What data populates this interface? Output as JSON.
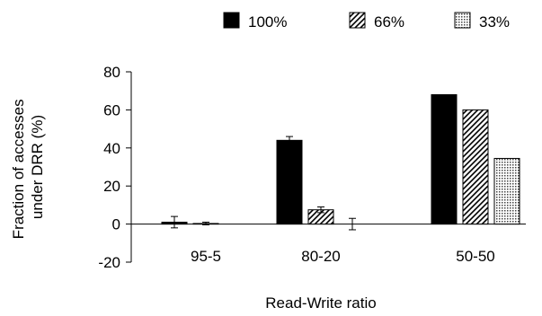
{
  "chart_data": {
    "type": "bar",
    "title": "",
    "xlabel": "Read-Write ratio",
    "ylabel_lines": [
      "Fraction of accesses",
      "under DRR (%)"
    ],
    "categories": [
      "95-5",
      "80-20",
      "50-50"
    ],
    "ylim": [
      -20,
      80
    ],
    "yticks": [
      -20,
      0,
      20,
      40,
      60,
      80
    ],
    "grid": false,
    "legend_position": "top",
    "series": [
      {
        "name": "100%",
        "pattern": "solid",
        "values": [
          1,
          44,
          68
        ],
        "errors": [
          3,
          2,
          0
        ]
      },
      {
        "name": "66%",
        "pattern": "diagonal-hatch",
        "values": [
          0.3,
          7.5,
          60
        ],
        "errors": [
          0.7,
          1.5,
          0
        ]
      },
      {
        "name": "33%",
        "pattern": "dotted",
        "values": [
          0,
          0,
          34.5
        ],
        "errors": [
          0,
          3,
          0
        ]
      }
    ]
  }
}
